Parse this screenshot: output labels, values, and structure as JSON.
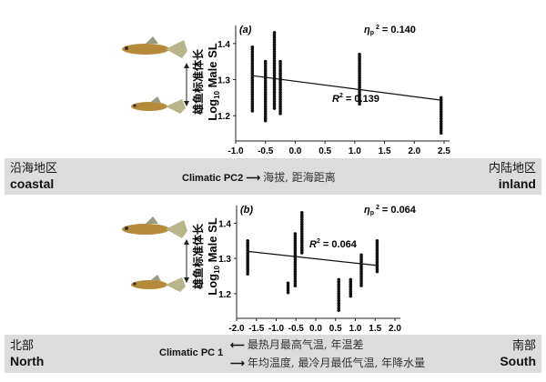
{
  "bands": [
    {
      "left_cn": "沿海地区",
      "left_en": "coastal",
      "right_cn": "内陆地区",
      "right_en": "inland",
      "axis_label": "Climatic PC2",
      "arrow_right_text": "海拔, 距海距离"
    },
    {
      "left_cn": "北部",
      "left_en": "North",
      "right_cn": "南部",
      "right_en": "South",
      "axis_label": "Climatic PC 1",
      "arrow_left_text": "最热月最高气温, 年温差",
      "arrow_right_text": "年均温度, 最冷月最低气温, 年降水量"
    }
  ],
  "ylabel_cn": "雄鱼标准体长",
  "ylabel_en": "Log10 Male SL",
  "chart_data": [
    {
      "type": "scatter",
      "panel": "(a)",
      "xlabel": "Climatic PC2",
      "ylabel": "Log10 Male SL (雄鱼标准体长)",
      "xlim": [
        -1.0,
        2.5
      ],
      "ylim": [
        1.13,
        1.45
      ],
      "xticks": [
        -1.0,
        -0.5,
        0.0,
        0.5,
        1.0,
        1.5,
        2.0,
        2.5
      ],
      "yticks": [
        1.2,
        1.3,
        1.4
      ],
      "annotations": [
        "ηp² = 0.140",
        "R² = 0.139"
      ],
      "eta_label": "η",
      "eta_value": "= 0.140",
      "r2_value": "= 0.139",
      "trendline": {
        "x": [
          -0.72,
          2.45
        ],
        "y": [
          1.311,
          1.243
        ]
      },
      "clusters": [
        {
          "x": -0.72,
          "y_min": 1.21,
          "y_max": 1.39
        },
        {
          "x": -0.5,
          "y_min": 1.18,
          "y_max": 1.35
        },
        {
          "x": -0.35,
          "y_min": 1.22,
          "y_max": 1.43
        },
        {
          "x": -0.25,
          "y_min": 1.2,
          "y_max": 1.35
        },
        {
          "x": 1.08,
          "y_min": 1.23,
          "y_max": 1.37
        },
        {
          "x": 2.45,
          "y_min": 1.15,
          "y_max": 1.25
        }
      ]
    },
    {
      "type": "scatter",
      "panel": "(b)",
      "xlabel": "Climatic PC 1",
      "ylabel": "Log10 Male SL (雄鱼标准体长)",
      "xlim": [
        -2.0,
        2.0
      ],
      "ylim": [
        1.13,
        1.45
      ],
      "xticks": [
        -2.0,
        -1.5,
        -1.0,
        -0.5,
        0.0,
        0.5,
        1.0,
        1.5,
        2.0
      ],
      "yticks": [
        1.2,
        1.3,
        1.4
      ],
      "annotations": [
        "ηp² = 0.064",
        "R² = 0.064"
      ],
      "eta_label": "η",
      "eta_value": "= 0.064",
      "r2_value": "= 0.064",
      "trendline": {
        "x": [
          -1.72,
          1.55
        ],
        "y": [
          1.32,
          1.28
        ]
      },
      "clusters": [
        {
          "x": -1.72,
          "y_min": 1.25,
          "y_max": 1.35
        },
        {
          "x": -0.7,
          "y_min": 1.2,
          "y_max": 1.23
        },
        {
          "x": -0.52,
          "y_min": 1.22,
          "y_max": 1.37
        },
        {
          "x": -0.35,
          "y_min": 1.31,
          "y_max": 1.43
        },
        {
          "x": 0.58,
          "y_min": 1.15,
          "y_max": 1.24
        },
        {
          "x": 0.88,
          "y_min": 1.19,
          "y_max": 1.24
        },
        {
          "x": 1.15,
          "y_min": 1.22,
          "y_max": 1.31
        },
        {
          "x": 1.55,
          "y_min": 1.26,
          "y_max": 1.35
        }
      ]
    }
  ]
}
